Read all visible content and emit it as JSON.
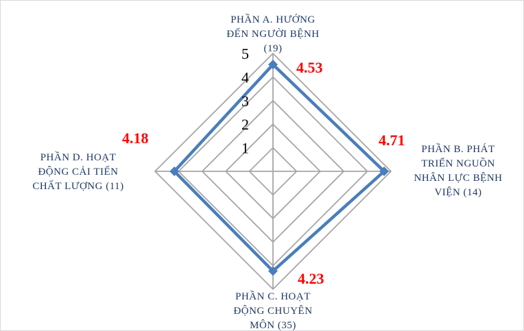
{
  "chart_data": {
    "type": "radar",
    "title": "",
    "rmin": 0,
    "rmax": 5,
    "ticks": [
      1,
      2,
      3,
      4,
      5
    ],
    "tick_labels": [
      "1",
      "2",
      "3",
      "4",
      "5"
    ],
    "axes": [
      {
        "lines": [
          "PHẦN A. HƯỚNG",
          "ĐẾN NGƯỜI BỆNH",
          "(19)"
        ],
        "value": 4.53,
        "value_label": "4.53"
      },
      {
        "lines": [
          "PHẦN B. PHÁT",
          "TRIỂN NGUỒN",
          "NHÂN LỰC BỆNH",
          "VIỆN (14)"
        ],
        "value": 4.71,
        "value_label": "4.71"
      },
      {
        "lines": [
          "PHẦN C. HOẠT",
          "ĐỘNG CHUYÊN",
          "MÔN (35)"
        ],
        "value": 4.23,
        "value_label": "4.23"
      },
      {
        "lines": [
          "PHẦN D. HOẠT",
          "ĐỘNG CẢI TIẾN",
          "CHẤT LƯỢNG (11)"
        ],
        "value": 4.18,
        "value_label": "4.18"
      }
    ],
    "colors": {
      "series": "#4a7ebb",
      "grid": "#a6a6a6",
      "value_label": "#ff0000",
      "axis_label": "#1f3864"
    }
  }
}
